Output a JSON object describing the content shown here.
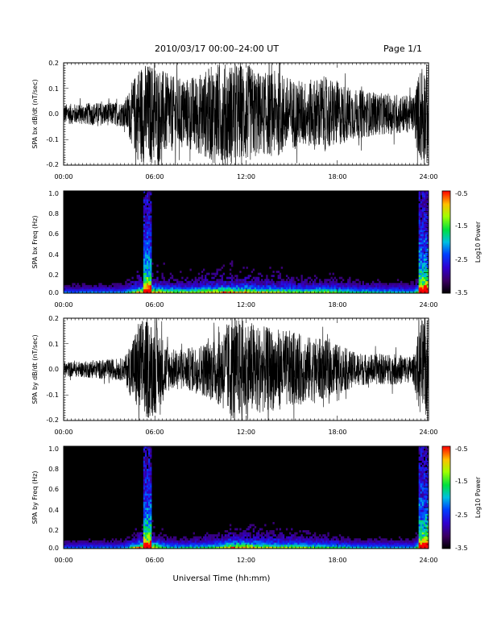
{
  "header": {
    "title": "2010/03/17  00:00–24:00 UT",
    "page": "Page 1/1"
  },
  "footer": {
    "xlabel": "Universal Time (hh:mm)"
  },
  "chart_data": [
    {
      "type": "line",
      "ylabel": "SPA bx dB/dt (nT/sec)",
      "xlim": [
        0,
        24
      ],
      "ylim": [
        -0.2,
        0.2
      ],
      "x_ticks": [
        "00:00",
        "06:00",
        "12:00",
        "18:00",
        "24:00"
      ],
      "y_ticks": [
        "-0.2",
        "-0.1",
        "0.0",
        "0.1",
        "0.2"
      ],
      "envelope": {
        "hours": [
          0,
          1,
          2,
          3,
          4,
          5,
          5.5,
          6,
          7,
          8,
          9,
          10,
          11,
          12,
          13,
          14,
          15,
          16,
          17,
          18,
          19,
          20,
          21,
          22,
          23,
          23.5,
          24
        ],
        "amplitude": [
          0.04,
          0.04,
          0.045,
          0.045,
          0.05,
          0.2,
          0.2,
          0.2,
          0.15,
          0.14,
          0.16,
          0.2,
          0.2,
          0.2,
          0.16,
          0.17,
          0.14,
          0.13,
          0.15,
          0.13,
          0.1,
          0.09,
          0.08,
          0.08,
          0.07,
          0.2,
          0.2
        ]
      }
    },
    {
      "type": "heatmap",
      "ylabel": "SPA bx Freq (Hz)",
      "xlim": [
        0,
        24
      ],
      "ylim": [
        0,
        1
      ],
      "x_ticks": [
        "00:00",
        "06:00",
        "12:00",
        "18:00",
        "24:00"
      ],
      "y_ticks": [
        "0.0",
        "0.2",
        "0.4",
        "0.6",
        "0.8",
        "1.0"
      ],
      "colorbar": {
        "label": "Log10 Power",
        "range": [
          -3.5,
          -0.5
        ],
        "ticks": [
          "-0.5",
          "-1.5",
          "-2.5",
          "-3.5"
        ]
      },
      "bursts": [
        {
          "start_hour": 5.2,
          "end_hour": 5.8,
          "max_freq": 1.0
        },
        {
          "start_hour": 23.3,
          "end_hour": 24.0,
          "max_freq": 1.0
        }
      ]
    },
    {
      "type": "line",
      "ylabel": "SPA by dB/dt (nT/sec)",
      "xlim": [
        0,
        24
      ],
      "ylim": [
        -0.2,
        0.2
      ],
      "x_ticks": [
        "00:00",
        "06:00",
        "12:00",
        "18:00",
        "24:00"
      ],
      "y_ticks": [
        "-0.2",
        "-0.1",
        "0.0",
        "0.1",
        "0.2"
      ],
      "envelope": {
        "hours": [
          0,
          1,
          2,
          3,
          4,
          5,
          5.5,
          6,
          7,
          8,
          9,
          10,
          11,
          12,
          13,
          14,
          15,
          16,
          17,
          18,
          19,
          20,
          21,
          22,
          23,
          23.5,
          24
        ],
        "amplitude": [
          0.03,
          0.03,
          0.035,
          0.04,
          0.045,
          0.2,
          0.2,
          0.18,
          0.08,
          0.08,
          0.1,
          0.13,
          0.2,
          0.2,
          0.17,
          0.16,
          0.15,
          0.13,
          0.12,
          0.1,
          0.07,
          0.06,
          0.06,
          0.06,
          0.05,
          0.2,
          0.2
        ]
      }
    },
    {
      "type": "heatmap",
      "ylabel": "SPA by Freq (Hz)",
      "xlim": [
        0,
        24
      ],
      "ylim": [
        0,
        1
      ],
      "x_ticks": [
        "00:00",
        "06:00",
        "12:00",
        "18:00",
        "24:00"
      ],
      "y_ticks": [
        "0.0",
        "0.2",
        "0.4",
        "0.6",
        "0.8",
        "1.0"
      ],
      "colorbar": {
        "label": "Log10 Power",
        "range": [
          -3.5,
          -0.5
        ],
        "ticks": [
          "-0.5",
          "-1.5",
          "-2.5",
          "-3.5"
        ]
      },
      "bursts": [
        {
          "start_hour": 5.2,
          "end_hour": 5.8,
          "max_freq": 1.0
        },
        {
          "start_hour": 23.3,
          "end_hour": 24.0,
          "max_freq": 1.0
        }
      ]
    }
  ]
}
